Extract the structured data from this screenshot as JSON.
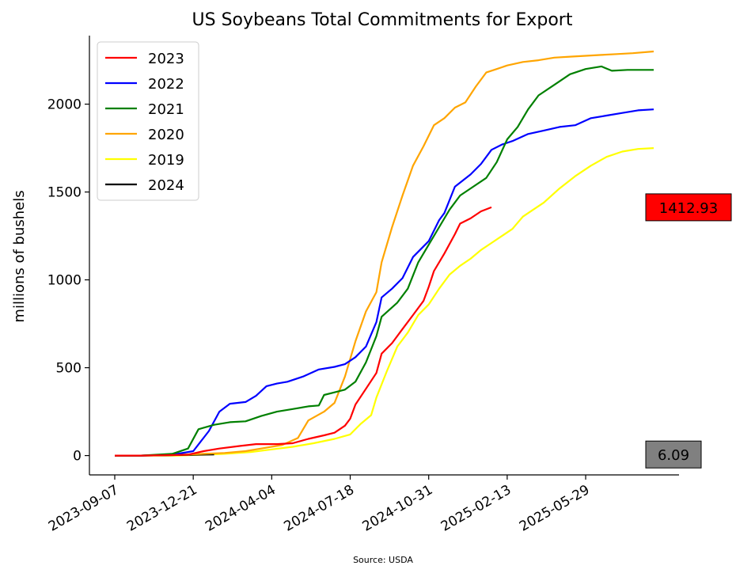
{
  "chart_data": {
    "type": "line",
    "title": "US Soybeans Total Commitments for Export",
    "xlabel": "",
    "ylabel": "millions of bushels",
    "source": "Source: USDA",
    "x_start": "2023-09-07",
    "x_end": "2025-08-28",
    "x_ticks": [
      "2023-09-07",
      "2023-12-21",
      "2024-04-04",
      "2024-07-18",
      "2024-10-31",
      "2025-02-13",
      "2025-05-29"
    ],
    "y_ticks": [
      0,
      500,
      1000,
      1500,
      2000
    ],
    "ylim": [
      -110,
      2390
    ],
    "legend_position": "upper-left",
    "series": [
      {
        "name": "2023",
        "color": "#ff0000",
        "points": [
          [
            "2023-09-07",
            0
          ],
          [
            "2023-10-12",
            0
          ],
          [
            "2023-11-16",
            2
          ],
          [
            "2023-12-14",
            5
          ],
          [
            "2024-01-04",
            25
          ],
          [
            "2024-01-25",
            40
          ],
          [
            "2024-02-22",
            55
          ],
          [
            "2024-03-14",
            65
          ],
          [
            "2024-04-11",
            65
          ],
          [
            "2024-05-02",
            70
          ],
          [
            "2024-05-23",
            95
          ],
          [
            "2024-06-13",
            115
          ],
          [
            "2024-06-27",
            130
          ],
          [
            "2024-07-11",
            170
          ],
          [
            "2024-07-18",
            210
          ],
          [
            "2024-07-25",
            290
          ],
          [
            "2024-08-08",
            380
          ],
          [
            "2024-08-22",
            470
          ],
          [
            "2024-08-29",
            580
          ],
          [
            "2024-09-12",
            640
          ],
          [
            "2024-09-26",
            720
          ],
          [
            "2024-10-10",
            800
          ],
          [
            "2024-10-24",
            880
          ],
          [
            "2024-10-31",
            960
          ],
          [
            "2024-11-07",
            1050
          ],
          [
            "2024-11-21",
            1150
          ],
          [
            "2024-12-05",
            1260
          ],
          [
            "2024-12-12",
            1320
          ],
          [
            "2024-12-26",
            1350
          ],
          [
            "2025-01-09",
            1390
          ],
          [
            "2025-01-23",
            1412.93
          ]
        ]
      },
      {
        "name": "2022",
        "color": "#0000ff",
        "points": [
          [
            "2023-09-07",
            0
          ],
          [
            "2023-10-12",
            0
          ],
          [
            "2023-11-23",
            5
          ],
          [
            "2023-12-21",
            25
          ],
          [
            "2024-01-11",
            140
          ],
          [
            "2024-01-25",
            250
          ],
          [
            "2024-02-08",
            295
          ],
          [
            "2024-02-29",
            305
          ],
          [
            "2024-03-14",
            340
          ],
          [
            "2024-03-28",
            395
          ],
          [
            "2024-04-11",
            410
          ],
          [
            "2024-04-25",
            420
          ],
          [
            "2024-05-16",
            450
          ],
          [
            "2024-06-06",
            490
          ],
          [
            "2024-06-27",
            505
          ],
          [
            "2024-07-11",
            520
          ],
          [
            "2024-07-25",
            560
          ],
          [
            "2024-08-08",
            620
          ],
          [
            "2024-08-22",
            760
          ],
          [
            "2024-08-29",
            900
          ],
          [
            "2024-09-12",
            950
          ],
          [
            "2024-09-26",
            1010
          ],
          [
            "2024-10-10",
            1130
          ],
          [
            "2024-10-31",
            1220
          ],
          [
            "2024-11-14",
            1340
          ],
          [
            "2024-11-21",
            1380
          ],
          [
            "2024-12-05",
            1530
          ],
          [
            "2024-12-26",
            1600
          ],
          [
            "2025-01-09",
            1660
          ],
          [
            "2025-01-23",
            1740
          ],
          [
            "2025-02-06",
            1770
          ],
          [
            "2025-02-20",
            1790
          ],
          [
            "2025-03-13",
            1830
          ],
          [
            "2025-04-03",
            1850
          ],
          [
            "2025-04-24",
            1870
          ],
          [
            "2025-05-15",
            1880
          ],
          [
            "2025-06-05",
            1920
          ],
          [
            "2025-06-26",
            1935
          ],
          [
            "2025-07-17",
            1950
          ],
          [
            "2025-08-07",
            1965
          ],
          [
            "2025-08-28",
            1970
          ]
        ]
      },
      {
        "name": "2021",
        "color": "#008000",
        "points": [
          [
            "2023-09-07",
            0
          ],
          [
            "2023-10-12",
            0
          ],
          [
            "2023-11-23",
            10
          ],
          [
            "2023-12-14",
            40
          ],
          [
            "2023-12-28",
            150
          ],
          [
            "2024-01-18",
            175
          ],
          [
            "2024-02-08",
            190
          ],
          [
            "2024-02-29",
            195
          ],
          [
            "2024-03-21",
            225
          ],
          [
            "2024-04-11",
            250
          ],
          [
            "2024-05-02",
            265
          ],
          [
            "2024-05-23",
            280
          ],
          [
            "2024-06-06",
            285
          ],
          [
            "2024-06-13",
            345
          ],
          [
            "2024-06-27",
            360
          ],
          [
            "2024-07-11",
            375
          ],
          [
            "2024-07-25",
            420
          ],
          [
            "2024-08-08",
            530
          ],
          [
            "2024-08-22",
            680
          ],
          [
            "2024-08-29",
            790
          ],
          [
            "2024-09-19",
            870
          ],
          [
            "2024-10-03",
            950
          ],
          [
            "2024-10-17",
            1100
          ],
          [
            "2024-10-31",
            1200
          ],
          [
            "2024-11-14",
            1300
          ],
          [
            "2024-11-28",
            1400
          ],
          [
            "2024-12-12",
            1480
          ],
          [
            "2024-12-26",
            1520
          ],
          [
            "2025-01-16",
            1580
          ],
          [
            "2025-01-30",
            1670
          ],
          [
            "2025-02-13",
            1800
          ],
          [
            "2025-02-27",
            1870
          ],
          [
            "2025-03-13",
            1970
          ],
          [
            "2025-03-27",
            2050
          ],
          [
            "2025-04-17",
            2110
          ],
          [
            "2025-05-08",
            2170
          ],
          [
            "2025-05-29",
            2200
          ],
          [
            "2025-06-19",
            2215
          ],
          [
            "2025-07-03",
            2190
          ],
          [
            "2025-07-24",
            2195
          ],
          [
            "2025-08-28",
            2195
          ]
        ]
      },
      {
        "name": "2020",
        "color": "#ffa500",
        "points": [
          [
            "2023-09-07",
            0
          ],
          [
            "2023-10-12",
            0
          ],
          [
            "2023-11-30",
            5
          ],
          [
            "2024-01-04",
            10
          ],
          [
            "2024-02-01",
            15
          ],
          [
            "2024-02-29",
            25
          ],
          [
            "2024-03-28",
            45
          ],
          [
            "2024-04-18",
            60
          ],
          [
            "2024-05-09",
            100
          ],
          [
            "2024-05-23",
            200
          ],
          [
            "2024-06-13",
            250
          ],
          [
            "2024-06-27",
            300
          ],
          [
            "2024-07-11",
            450
          ],
          [
            "2024-07-25",
            650
          ],
          [
            "2024-08-08",
            820
          ],
          [
            "2024-08-22",
            930
          ],
          [
            "2024-08-29",
            1100
          ],
          [
            "2024-09-12",
            1300
          ],
          [
            "2024-09-26",
            1480
          ],
          [
            "2024-10-10",
            1650
          ],
          [
            "2024-10-24",
            1760
          ],
          [
            "2024-11-07",
            1880
          ],
          [
            "2024-11-21",
            1920
          ],
          [
            "2024-12-05",
            1980
          ],
          [
            "2024-12-19",
            2010
          ],
          [
            "2025-01-02",
            2100
          ],
          [
            "2025-01-16",
            2180
          ],
          [
            "2025-01-30",
            2200
          ],
          [
            "2025-02-13",
            2220
          ],
          [
            "2025-03-06",
            2240
          ],
          [
            "2025-03-27",
            2250
          ],
          [
            "2025-04-17",
            2265
          ],
          [
            "2025-05-08",
            2270
          ],
          [
            "2025-05-29",
            2275
          ],
          [
            "2025-06-19",
            2280
          ],
          [
            "2025-07-10",
            2285
          ],
          [
            "2025-07-31",
            2290
          ],
          [
            "2025-08-28",
            2300
          ]
        ]
      },
      {
        "name": "2019",
        "color": "#ffff00",
        "points": [
          [
            "2023-09-07",
            0
          ],
          [
            "2023-10-12",
            0
          ],
          [
            "2023-11-30",
            0
          ],
          [
            "2024-01-04",
            5
          ],
          [
            "2024-02-01",
            10
          ],
          [
            "2024-03-07",
            20
          ],
          [
            "2024-04-04",
            35
          ],
          [
            "2024-05-02",
            50
          ],
          [
            "2024-05-30",
            70
          ],
          [
            "2024-06-27",
            95
          ],
          [
            "2024-07-18",
            120
          ],
          [
            "2024-08-01",
            180
          ],
          [
            "2024-08-15",
            230
          ],
          [
            "2024-08-22",
            330
          ],
          [
            "2024-09-05",
            480
          ],
          [
            "2024-09-19",
            620
          ],
          [
            "2024-10-03",
            700
          ],
          [
            "2024-10-17",
            800
          ],
          [
            "2024-10-31",
            860
          ],
          [
            "2024-11-14",
            950
          ],
          [
            "2024-11-28",
            1030
          ],
          [
            "2024-12-12",
            1080
          ],
          [
            "2024-12-26",
            1120
          ],
          [
            "2025-01-09",
            1170
          ],
          [
            "2025-01-23",
            1210
          ],
          [
            "2025-02-06",
            1250
          ],
          [
            "2025-02-20",
            1290
          ],
          [
            "2025-03-06",
            1360
          ],
          [
            "2025-03-20",
            1400
          ],
          [
            "2025-04-03",
            1440
          ],
          [
            "2025-04-24",
            1520
          ],
          [
            "2025-05-15",
            1590
          ],
          [
            "2025-06-05",
            1650
          ],
          [
            "2025-06-26",
            1700
          ],
          [
            "2025-07-17",
            1730
          ],
          [
            "2025-08-07",
            1745
          ],
          [
            "2025-08-28",
            1750
          ]
        ]
      },
      {
        "name": "2024",
        "color": "#000000",
        "points": [
          [
            "2023-09-07",
            0
          ],
          [
            "2023-10-12",
            0
          ],
          [
            "2023-11-16",
            2
          ],
          [
            "2023-12-14",
            4
          ],
          [
            "2024-01-18",
            6.09
          ]
        ]
      }
    ],
    "value_boxes": [
      {
        "label": "1412.93",
        "value": 1412.93,
        "fill": "#ff0000"
      },
      {
        "label": "6.09",
        "value": 6.09,
        "fill": "#808080"
      }
    ]
  }
}
